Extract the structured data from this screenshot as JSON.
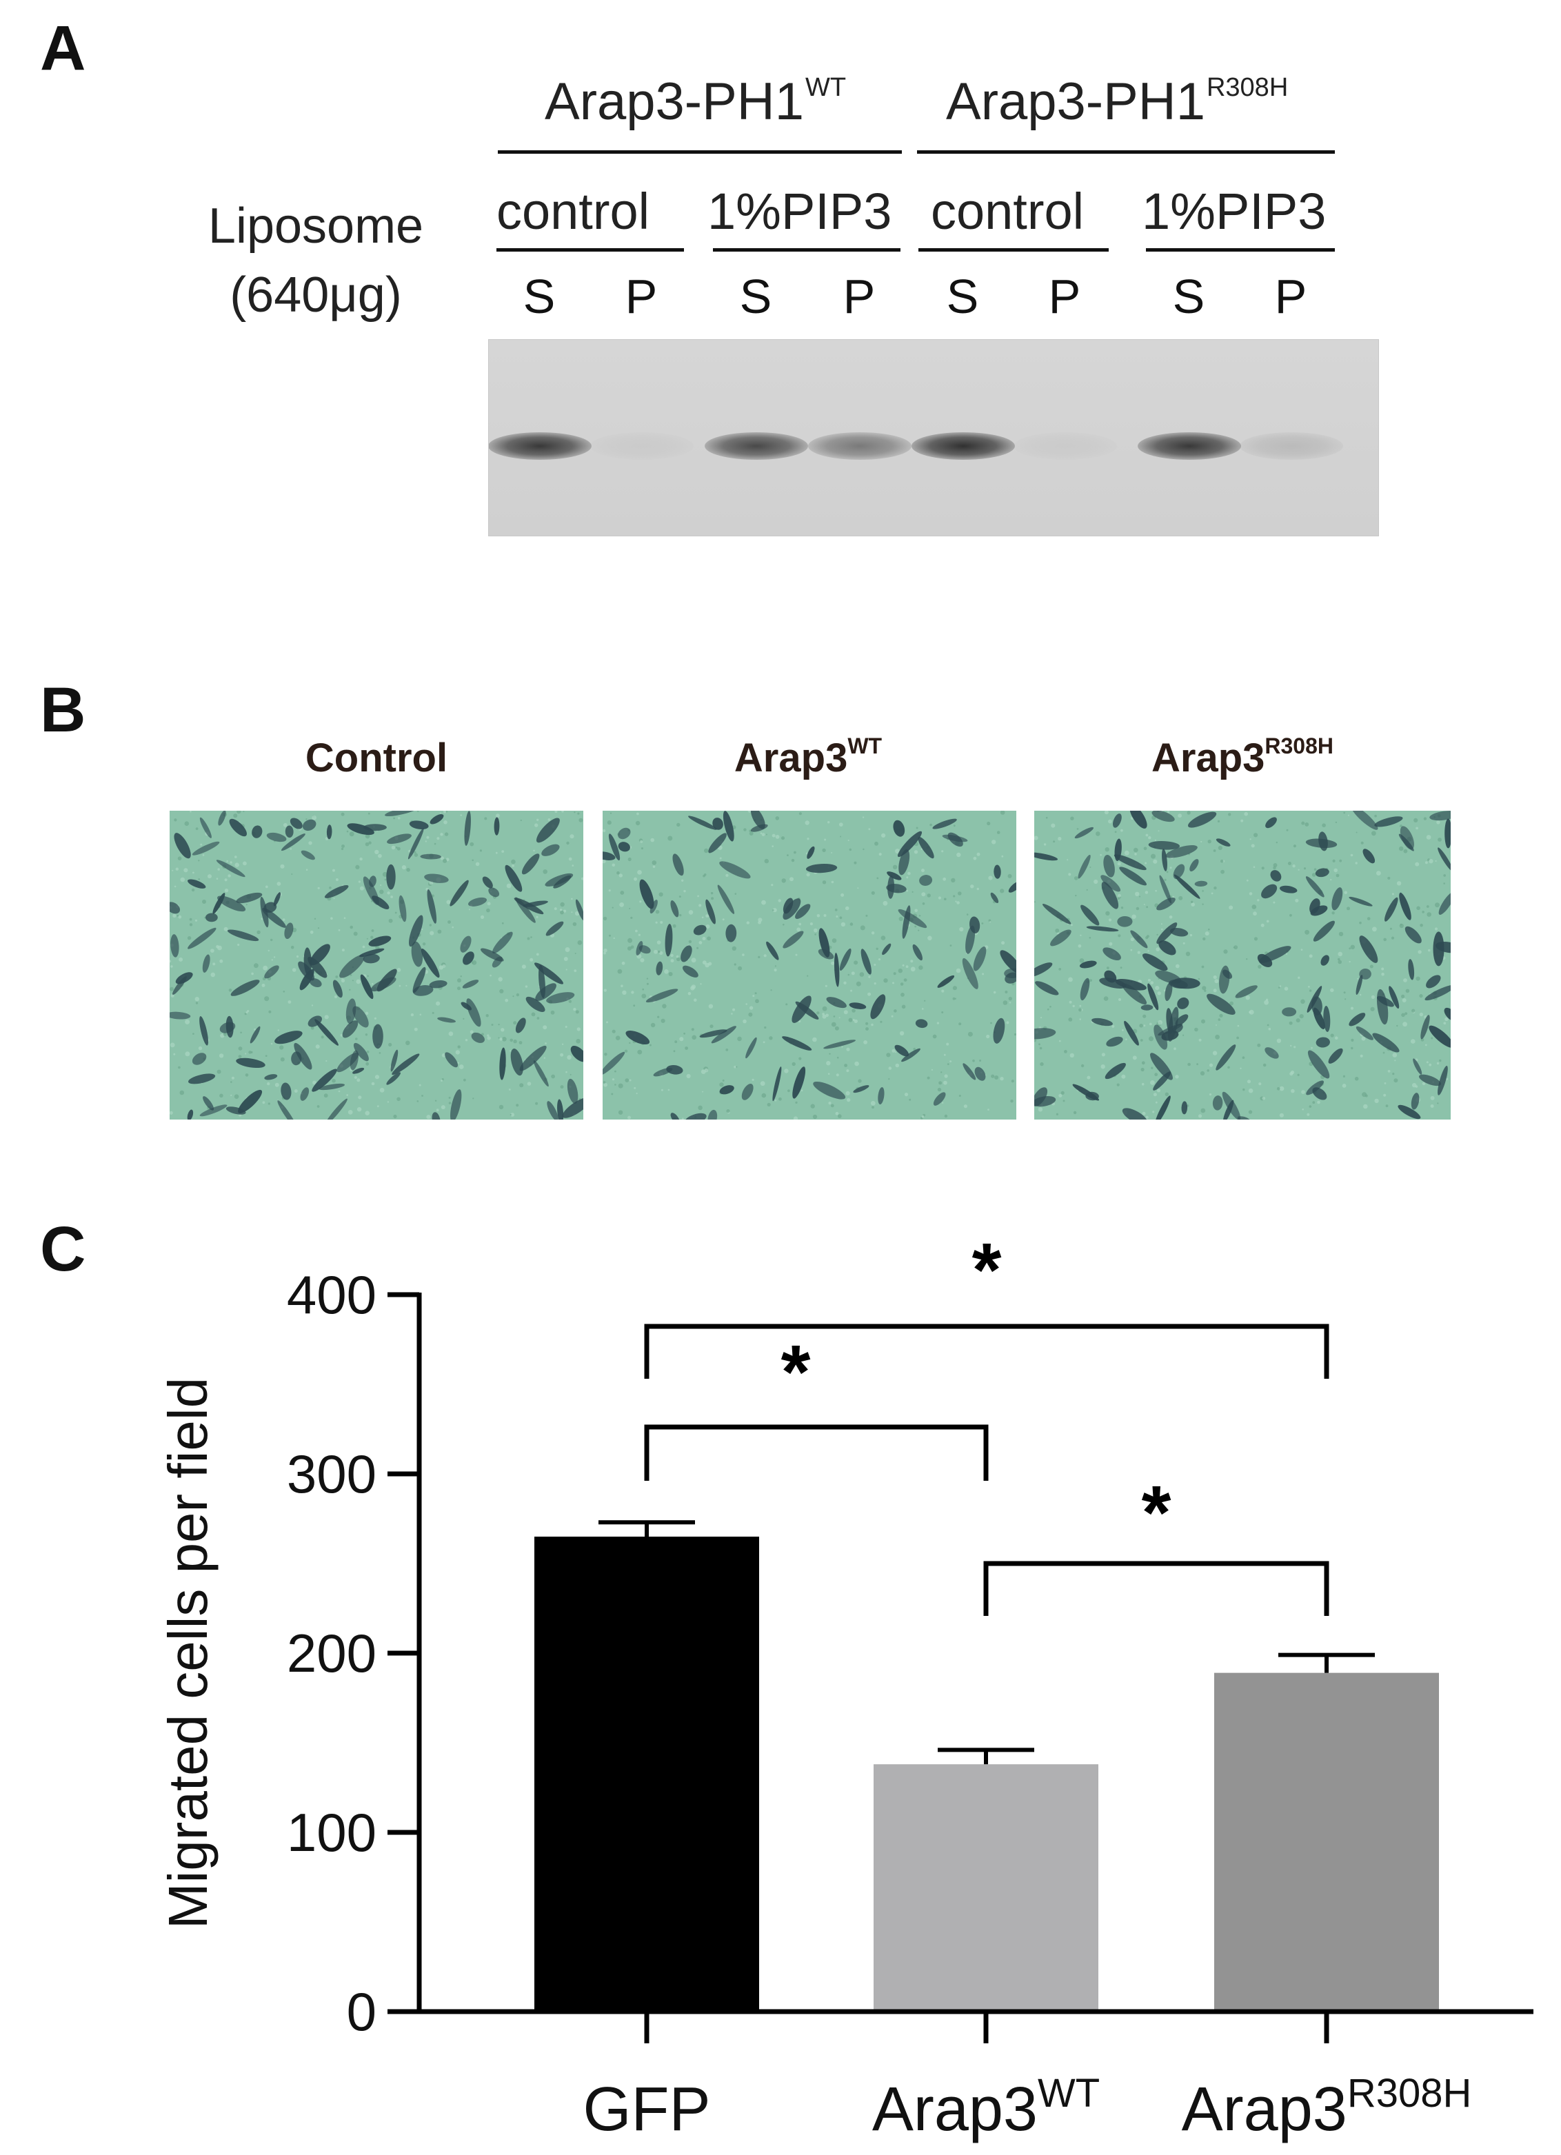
{
  "panels": {
    "a": {
      "letter": "A",
      "liposome_label_line1": "Liposome",
      "liposome_label_line2": "(640μg)",
      "constructs": [
        {
          "base": "Arap3-PH1",
          "sup": "WT"
        },
        {
          "base": "Arap3-PH1",
          "sup": "R308H"
        }
      ],
      "conditions": [
        "control",
        "1%PIP3",
        "control",
        "1%PIP3"
      ],
      "lanes": [
        "S",
        "P",
        "S",
        "P",
        "S",
        "P",
        "S",
        "P"
      ],
      "band_intensity": [
        0.95,
        0.05,
        0.85,
        0.55,
        1.0,
        0.05,
        0.95,
        0.15
      ]
    },
    "b": {
      "letter": "B",
      "images": [
        {
          "base": "Control",
          "sup": ""
        },
        {
          "base": "Arap3",
          "sup": "WT"
        },
        {
          "base": "Arap3",
          "sup": "R308H"
        }
      ]
    },
    "c": {
      "letter": "C",
      "significance_mark": "*"
    }
  },
  "colors": {
    "bar_gfp": "#000000",
    "bar_wt": "#b0b0b2",
    "bar_r308h": "#939393",
    "micro_background": "#8cc2aa",
    "cells": "#2e4a52"
  },
  "chart_data": {
    "type": "bar",
    "categories": [
      "GFP",
      "Arap3WT",
      "Arap3R308H"
    ],
    "category_labels": [
      {
        "base": "GFP",
        "sup": ""
      },
      {
        "base": "Arap3",
        "sup": "WT"
      },
      {
        "base": "Arap3",
        "sup": "R308H"
      }
    ],
    "values": [
      265,
      138,
      189
    ],
    "error": [
      8,
      8,
      10
    ],
    "ylabel": "Migrated cells per field",
    "ylim": [
      0,
      400
    ],
    "yticks": [
      0,
      100,
      200,
      300,
      400
    ],
    "comparisons": [
      {
        "from": 0,
        "to": 2,
        "label": "*"
      },
      {
        "from": 0,
        "to": 1,
        "label": "*"
      },
      {
        "from": 1,
        "to": 2,
        "label": "*"
      }
    ]
  }
}
